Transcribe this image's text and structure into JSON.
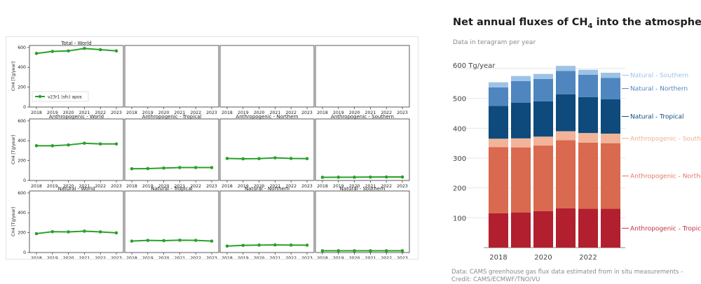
{
  "left": {
    "ylabel": "CH4 [Tg/year]",
    "legend_label": "v23r1 (sfc) apos",
    "line_color": "#2aa02a",
    "years": [
      "2018",
      "2019",
      "2020",
      "2021",
      "2022",
      "2023"
    ],
    "yticks": [
      "0",
      "200",
      "400",
      "600"
    ]
  },
  "chart_data": [
    {
      "type": "line",
      "layout": "3x4 small multiples",
      "x": [
        2018,
        2019,
        2020,
        2021,
        2022,
        2023
      ],
      "ylim": [
        0,
        620
      ],
      "panels": [
        {
          "title": "Total - World",
          "values": [
            540,
            560,
            565,
            590,
            578,
            565
          ]
        },
        {
          "title": "",
          "values": []
        },
        {
          "title": "",
          "values": []
        },
        {
          "title": "",
          "values": []
        },
        {
          "title": "Anthropogenic - World",
          "values": [
            350,
            350,
            358,
            375,
            368,
            368
          ]
        },
        {
          "title": "Anthropogenic - Tropical",
          "values": [
            118,
            120,
            125,
            130,
            130,
            130
          ]
        },
        {
          "title": "Anthropogenic - Northern",
          "values": [
            222,
            218,
            220,
            228,
            222,
            220
          ]
        },
        {
          "title": "Anthropogenic - Southern",
          "values": [
            32,
            33,
            33,
            34,
            35,
            35
          ]
        },
        {
          "title": "Natural - World",
          "values": [
            190,
            210,
            208,
            215,
            208,
            198
          ]
        },
        {
          "title": "Natural - Tropical",
          "values": [
            115,
            122,
            120,
            124,
            122,
            115
          ]
        },
        {
          "title": "Natural - Northern",
          "values": [
            65,
            72,
            75,
            77,
            75,
            74
          ]
        },
        {
          "title": "Natural - Southern",
          "values": [
            18,
            18,
            18,
            18,
            18,
            18
          ]
        }
      ]
    },
    {
      "type": "bar",
      "stacked": true,
      "title_main": "Net annual fluxes of CH",
      "title_sub": "4",
      "title_end": " into the atmosphere",
      "subtitle": "Data in teragram per year",
      "y_unit_label": "600 Tg/year",
      "yticks": [
        "100",
        "200",
        "300",
        "400",
        "500"
      ],
      "xticks": [
        "2018",
        "2020",
        "2022"
      ],
      "ylim": [
        0,
        620
      ],
      "categories": [
        "2018",
        "2019",
        "2020",
        "2021",
        "2022",
        "2023"
      ],
      "series": [
        {
          "name": "Anthropogenic - Tropical",
          "color": "#b21f2e",
          "label_color": "#c0303c",
          "values": [
            115,
            118,
            122,
            132,
            130,
            130
          ]
        },
        {
          "name": "Anthropogenic - Northern",
          "color": "#d9694f",
          "label_color": "#e07a5f",
          "values": [
            222,
            218,
            220,
            228,
            222,
            220
          ]
        },
        {
          "name": "Anthropogenic - Southern",
          "color": "#f2b499",
          "label_color": "#f0b090",
          "values": [
            28,
            30,
            30,
            30,
            32,
            32
          ]
        },
        {
          "name": "Natural - Tropical",
          "color": "#0e4a7c",
          "label_color": "#0e4a7c",
          "values": [
            110,
            120,
            118,
            124,
            120,
            115
          ]
        },
        {
          "name": "Natural - Northern",
          "color": "#4f86bf",
          "label_color": "#4f86bf",
          "values": [
            62,
            72,
            75,
            78,
            75,
            72
          ]
        },
        {
          "name": "Natural - Southern",
          "color": "#9cc3e6",
          "label_color": "#9cc3e6",
          "values": [
            17,
            17,
            17,
            17,
            17,
            17
          ]
        }
      ],
      "source": "Data: CAMS greenhouse gas flux data estimated from in situ measurements - Credit: CAMS/ECMWF/TNO/VU"
    }
  ]
}
